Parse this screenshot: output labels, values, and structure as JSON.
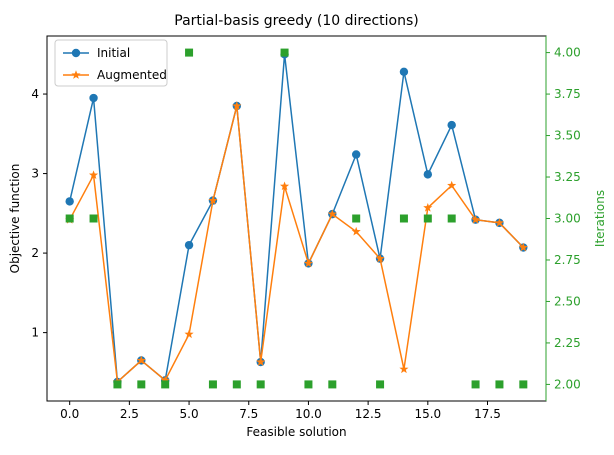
{
  "chart_data": {
    "type": "line",
    "title": "Partial-basis greedy (10 directions)",
    "xlabel": "Feasible solution",
    "ylabel": "Objective function",
    "ylabel_right": "Iterations",
    "x": [
      0,
      1,
      2,
      3,
      4,
      5,
      6,
      7,
      8,
      9,
      10,
      11,
      12,
      13,
      14,
      15,
      16,
      17,
      18,
      19
    ],
    "xlim": [
      -0.95,
      19.95
    ],
    "ylim": [
      0.14,
      4.73
    ],
    "ylim_right": [
      1.9,
      4.1
    ],
    "xticks": [
      0.0,
      2.5,
      5.0,
      7.5,
      10.0,
      12.5,
      15.0,
      17.5
    ],
    "xtick_labels": [
      "0.0",
      "2.5",
      "5.0",
      "7.5",
      "10.0",
      "12.5",
      "15.0",
      "17.5"
    ],
    "yticks": [
      1,
      2,
      3,
      4
    ],
    "ytick_labels": [
      "1",
      "2",
      "3",
      "4"
    ],
    "yticks_right": [
      2.0,
      2.25,
      2.5,
      2.75,
      3.0,
      3.25,
      3.5,
      3.75,
      4.0
    ],
    "ytick_labels_right": [
      "2.00",
      "2.25",
      "2.50",
      "2.75",
      "3.00",
      "3.25",
      "3.50",
      "3.75",
      "4.00"
    ],
    "legend_position": "top-left",
    "series": [
      {
        "name": "Initial",
        "color": "#1f77b4",
        "marker": "circle",
        "axis": "left",
        "values": [
          2.65,
          3.95,
          0.38,
          0.65,
          0.4,
          2.1,
          2.66,
          3.85,
          0.63,
          4.5,
          1.87,
          2.49,
          3.24,
          1.93,
          4.28,
          2.99,
          3.61,
          2.42,
          2.38,
          2.07
        ]
      },
      {
        "name": "Augmented",
        "color": "#ff7f0e",
        "marker": "star",
        "axis": "left",
        "values": [
          2.42,
          2.98,
          0.38,
          0.65,
          0.4,
          0.98,
          2.66,
          3.85,
          0.63,
          2.84,
          1.87,
          2.49,
          2.27,
          1.93,
          0.54,
          2.57,
          2.85,
          2.42,
          2.38,
          2.07
        ]
      },
      {
        "name": "",
        "color": "#2ca02c",
        "marker": "square",
        "axis": "right",
        "values": [
          3,
          3,
          2,
          2,
          2,
          4,
          2,
          2,
          2,
          4,
          2,
          2,
          3,
          2,
          3,
          3,
          3,
          2,
          2,
          2
        ]
      }
    ]
  },
  "legend": {
    "items": [
      {
        "label": "Initial",
        "color": "#1f77b4",
        "marker": "circle"
      },
      {
        "label": "Augmented",
        "color": "#ff7f0e",
        "marker": "star"
      }
    ]
  }
}
